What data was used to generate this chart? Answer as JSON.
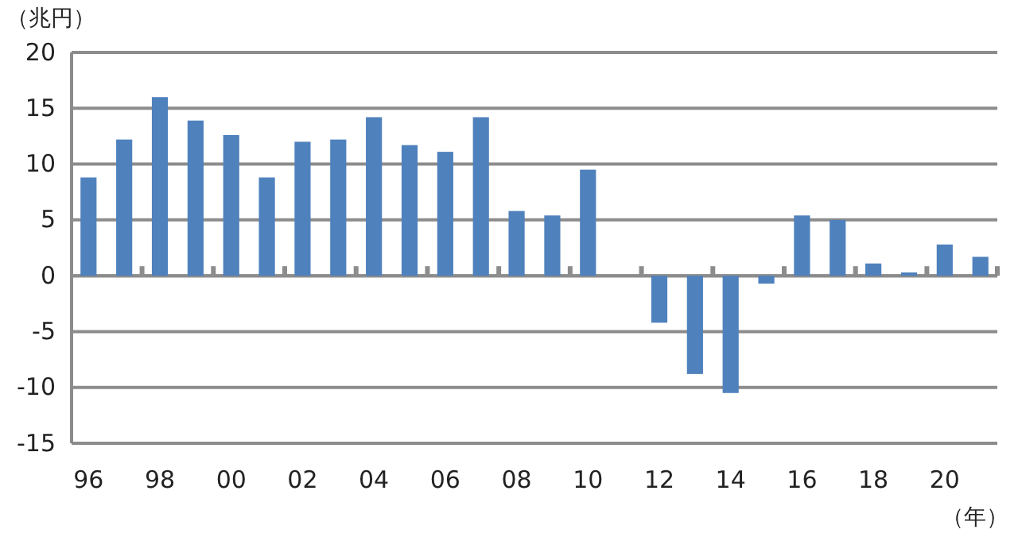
{
  "chart_data": {
    "type": "bar",
    "ylabel": "（兆円）",
    "xlabel": "（年）",
    "categories": [
      "96",
      null,
      "98",
      null,
      "00",
      null,
      "02",
      null,
      "04",
      null,
      "06",
      null,
      "08",
      null,
      "10",
      null,
      "12",
      null,
      "14",
      null,
      "16",
      null,
      "18",
      null,
      "20",
      null
    ],
    "values": [
      8.8,
      12.2,
      16.0,
      13.9,
      12.6,
      8.8,
      12.0,
      12.2,
      14.2,
      11.7,
      11.1,
      14.2,
      5.8,
      5.4,
      9.5,
      null,
      -4.2,
      -8.8,
      -10.5,
      -0.7,
      5.4,
      5.0,
      1.1,
      0.3,
      2.8,
      1.7
    ],
    "color": "#4f81bd",
    "ylim": [
      -15,
      20
    ],
    "yticks": [
      -15,
      -10,
      -5,
      0,
      5,
      10,
      15,
      20
    ],
    "grid": "y"
  }
}
